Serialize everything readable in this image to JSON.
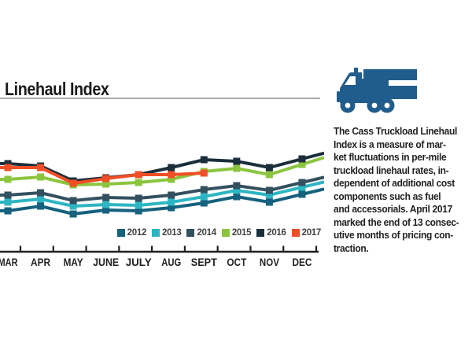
{
  "header": {
    "title": "Linehaul Index"
  },
  "sidebar": {
    "icon": "truck-icon",
    "icon_color": "#215d8c",
    "description": "The Cass Truckload Linehaul\nIndex is a measure of mar-\nket fluctuations in per-mile\ntruckload linehaul rates, in-\ndependent of additional cost\ncomponents such as fuel\nand accessorials. April 2017\nmarked the end of 13 consec-\nutive months of pricing con-\ntraction."
  },
  "chart_data": {
    "type": "line",
    "title": "Linehaul Index",
    "categories": [
      "MAR",
      "APR",
      "MAY",
      "JUNE",
      "JULY",
      "AUG",
      "SEPT",
      "OCT",
      "NOV",
      "DEC"
    ],
    "series": [
      {
        "name": "2012",
        "color": "#15617e",
        "values": [
          115.4,
          116.6,
          114.6,
          115.6,
          115.4,
          116.2,
          117.4,
          119.0,
          117.6,
          119.6
        ]
      },
      {
        "name": "2013",
        "color": "#2db5c3",
        "values": [
          117.6,
          118.4,
          116.6,
          117.0,
          116.8,
          117.6,
          119.0,
          120.6,
          119.4,
          121.4
        ]
      },
      {
        "name": "2014",
        "color": "#33505f",
        "values": [
          119.4,
          120.0,
          118.0,
          118.8,
          118.6,
          119.4,
          120.8,
          121.8,
          120.6,
          122.6
        ]
      },
      {
        "name": "2015",
        "color": "#8bc53f",
        "values": [
          123.4,
          124.0,
          122.0,
          122.2,
          122.6,
          123.4,
          125.4,
          126.2,
          124.6,
          127.2
        ]
      },
      {
        "name": "2016",
        "color": "#1b2e3b",
        "values": [
          127.4,
          126.8,
          123.0,
          123.8,
          124.6,
          126.4,
          128.4,
          128.0,
          126.4,
          128.6
        ]
      },
      {
        "name": "2017",
        "color": "#f04e26",
        "values": [
          126.4,
          126.4,
          122.4,
          123.6,
          124.6,
          124.6,
          125.0,
          null,
          null,
          null
        ]
      }
    ],
    "ylim": [
      105,
      133
    ],
    "xlabel": "",
    "ylabel": "",
    "y_axis_visible": false,
    "grid": false,
    "legend_position": "bottom-right",
    "marker": "square",
    "note": "2017 series ends at SEPT",
    "axis_color": "#231f20",
    "tick_label_color": "#231f20"
  }
}
